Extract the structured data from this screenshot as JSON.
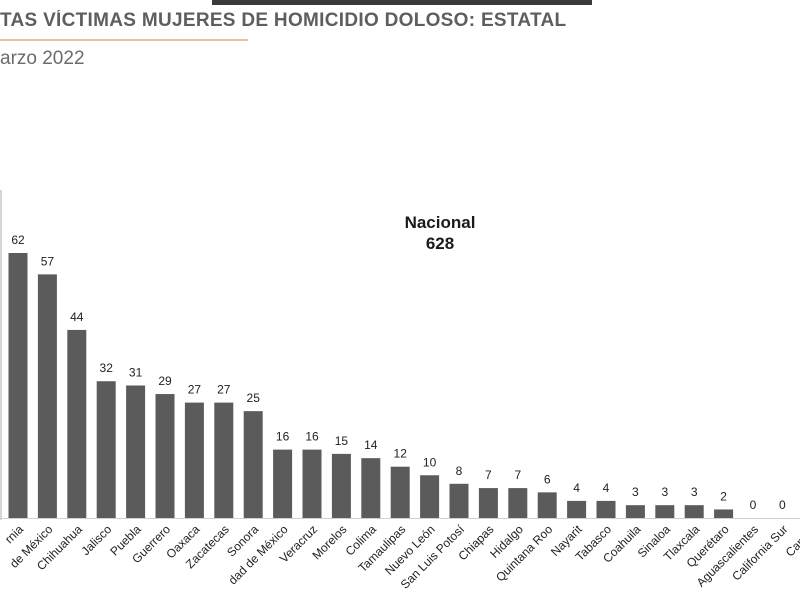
{
  "header": {
    "title": "TAS VÍCTIMAS MUJERES DE HOMICIDIO DOLOSO: ESTATAL",
    "subtitle": "arzo 2022"
  },
  "total": {
    "label": "Nacional",
    "value": "628"
  },
  "colors": {
    "bar": "#5b5b5b",
    "accent": "#e8c39e",
    "title": "#5e5e5e",
    "top_bar": "#3a3a3a"
  },
  "chart_data": {
    "type": "bar",
    "title": "",
    "xlabel": "",
    "ylabel": "",
    "ylim": [
      0,
      62
    ],
    "grid": false,
    "legend": "none",
    "categories": [
      "rnia",
      "de México",
      "Chihuahua",
      "Jalisco",
      "Puebla",
      "Guerrero",
      "Oaxaca",
      "Zacatecas",
      "Sonora",
      "dad de México",
      "Veracruz",
      "Morelos",
      "Colima",
      "Tamaulipas",
      "Nuevo León",
      "San Luis Potosí",
      "Chiapas",
      "Hidalgo",
      "Quintana Roo",
      "Nayarit",
      "Tabasco",
      "Coahuila",
      "Sinaloa",
      "Tlaxcala",
      "Querétaro",
      "Aguascalientes",
      "California Sur",
      "Campe"
    ],
    "values": [
      62,
      57,
      44,
      32,
      31,
      29,
      27,
      27,
      25,
      16,
      16,
      15,
      14,
      12,
      10,
      8,
      7,
      7,
      6,
      4,
      4,
      3,
      3,
      3,
      2,
      0,
      0,
      0
    ],
    "value_labels": [
      "62",
      "57",
      "44",
      "32",
      "31",
      "29",
      "27",
      "27",
      "25",
      "16",
      "16",
      "15",
      "14",
      "12",
      "10",
      "8",
      "7",
      "7",
      "6",
      "4",
      "4",
      "3",
      "3",
      "3",
      "2",
      "0",
      "0",
      ""
    ]
  }
}
